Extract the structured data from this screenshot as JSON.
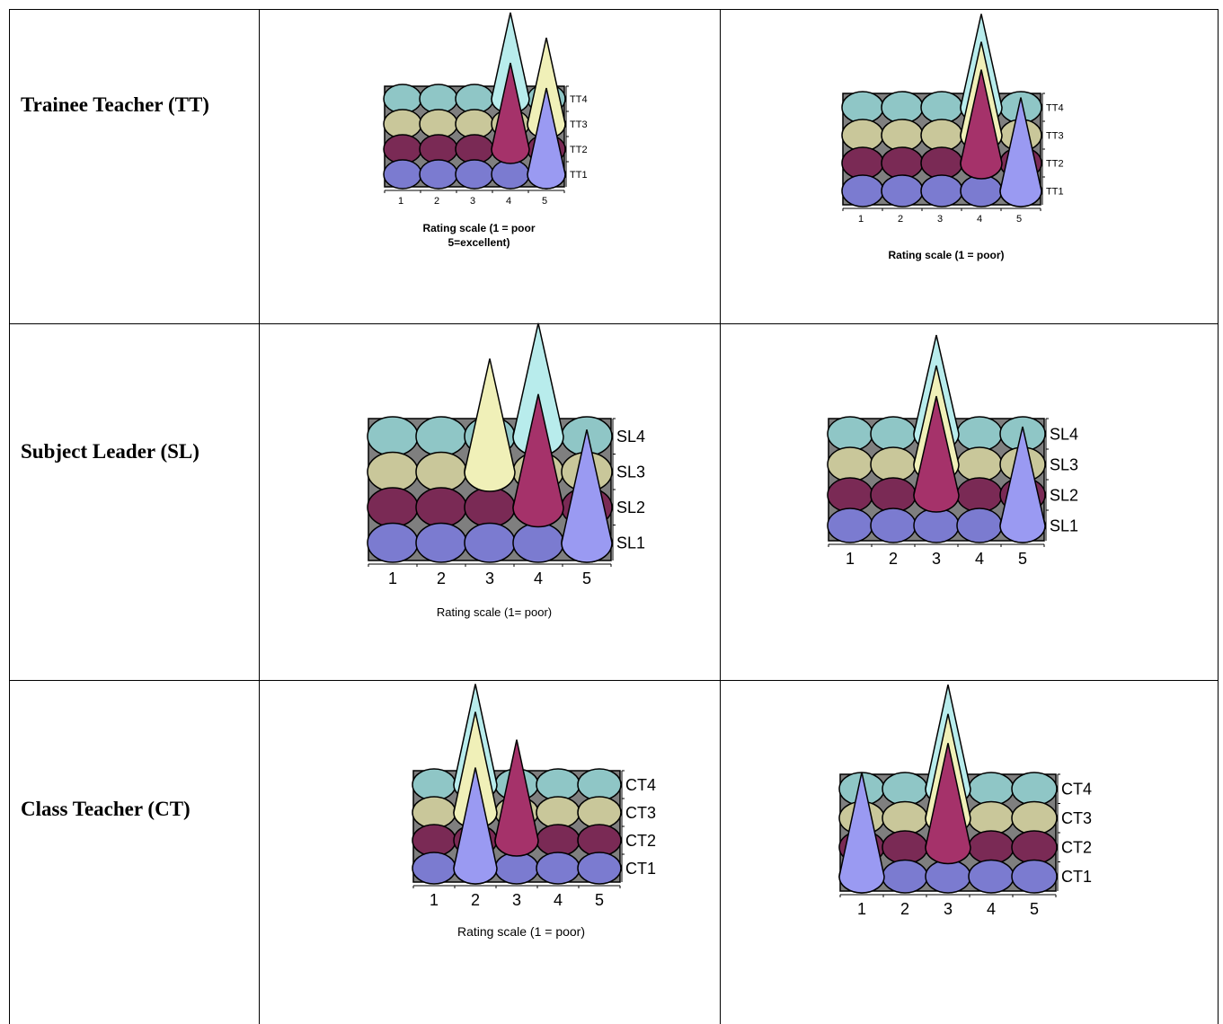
{
  "rows": [
    {
      "role": "Trainee Teacher (TT)"
    },
    {
      "role": "Subject Leader (SL)"
    },
    {
      "role": "Class Teacher (CT)"
    }
  ],
  "colors": {
    "series1": "#7b7bd0",
    "series2": "#7a2a55",
    "series3": "#c9c79a",
    "series4": "#8fc6c6",
    "back_wall": "#7f7f7f",
    "cone1": "#9a9af2",
    "cone2": "#a5326a",
    "cone3": "#f0f0b8",
    "cone4": "#b8ecec"
  },
  "chart_data": [
    {
      "type": "3d-cone",
      "categories": [
        "1",
        "2",
        "3",
        "4",
        "5"
      ],
      "series": [
        {
          "name": "TT1",
          "peak": "5"
        },
        {
          "name": "TT2",
          "peak": "4"
        },
        {
          "name": "TT3",
          "peak": "5"
        },
        {
          "name": "TT4",
          "peak": "4"
        }
      ],
      "xlabel": "Rating scale (1 = poor\n5=excellent)"
    },
    {
      "type": "3d-cone",
      "categories": [
        "1",
        "2",
        "3",
        "4",
        "5"
      ],
      "series": [
        {
          "name": "TT1",
          "peak": "5"
        },
        {
          "name": "TT2",
          "peak": "4"
        },
        {
          "name": "TT3",
          "peak": "4"
        },
        {
          "name": "TT4",
          "peak": "4"
        }
      ],
      "xlabel": "Rating scale (1 = poor)"
    },
    {
      "type": "3d-cone",
      "categories": [
        "1",
        "2",
        "3",
        "4",
        "5"
      ],
      "series": [
        {
          "name": "SL1",
          "peak": "5"
        },
        {
          "name": "SL2",
          "peak": "4"
        },
        {
          "name": "SL3",
          "peak": "3"
        },
        {
          "name": "SL4",
          "peak": "4"
        }
      ],
      "xlabel": "Rating scale (1= poor)"
    },
    {
      "type": "3d-cone",
      "categories": [
        "1",
        "2",
        "3",
        "4",
        "5"
      ],
      "series": [
        {
          "name": "SL1",
          "peak": "5"
        },
        {
          "name": "SL2",
          "peak": "3"
        },
        {
          "name": "SL3",
          "peak": "3"
        },
        {
          "name": "SL4",
          "peak": "3"
        }
      ],
      "xlabel": ""
    },
    {
      "type": "3d-cone",
      "categories": [
        "1",
        "2",
        "3",
        "4",
        "5"
      ],
      "series": [
        {
          "name": "CT1",
          "peak": "2"
        },
        {
          "name": "CT2",
          "peak": "3"
        },
        {
          "name": "CT3",
          "peak": "2"
        },
        {
          "name": "CT4",
          "peak": "2"
        }
      ],
      "xlabel": "Rating scale (1 = poor)"
    },
    {
      "type": "3d-cone",
      "categories": [
        "1",
        "2",
        "3",
        "4",
        "5"
      ],
      "series": [
        {
          "name": "CT1",
          "peak": "1"
        },
        {
          "name": "CT2",
          "peak": "3"
        },
        {
          "name": "CT3",
          "peak": "3"
        },
        {
          "name": "CT4",
          "peak": "3"
        }
      ],
      "xlabel": ""
    }
  ]
}
